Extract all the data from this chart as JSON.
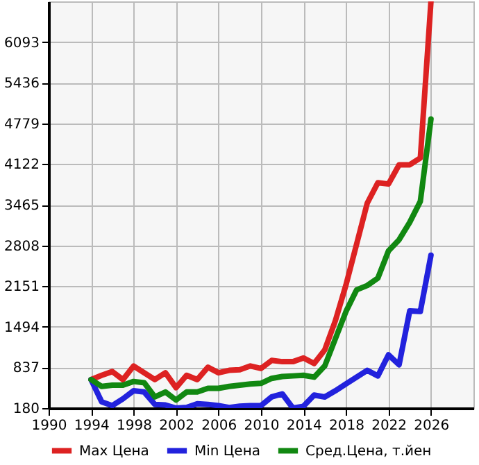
{
  "chart_data": {
    "type": "line",
    "x": [
      1994,
      1995,
      1996,
      1997,
      1998,
      1999,
      2000,
      2001,
      2002,
      2003,
      2004,
      2005,
      2006,
      2007,
      2008,
      2009,
      2010,
      2011,
      2012,
      2013,
      2014,
      2015,
      2016,
      2017,
      2018,
      2019,
      2020,
      2021,
      2022,
      2023,
      2024,
      2025,
      2026
    ],
    "series": [
      {
        "name": "Max Цена",
        "color": "#dd2222",
        "values": [
          640,
          710,
          770,
          640,
          860,
          750,
          640,
          750,
          510,
          710,
          640,
          840,
          750,
          790,
          800,
          860,
          820,
          950,
          930,
          930,
          990,
          900,
          1120,
          1590,
          2170,
          2830,
          3490,
          3820,
          3800,
          4110,
          4110,
          4220,
          6750
        ]
      },
      {
        "name": "Min Цена",
        "color": "#2222dd",
        "values": [
          640,
          280,
          220,
          330,
          460,
          440,
          240,
          230,
          180,
          190,
          250,
          240,
          220,
          190,
          210,
          220,
          220,
          360,
          410,
          180,
          210,
          390,
          360,
          460,
          570,
          680,
          790,
          700,
          1040,
          880,
          1750,
          1740,
          2650
        ]
      },
      {
        "name": "Сред.Цена, т.йен",
        "color": "#118811",
        "values": [
          640,
          530,
          550,
          550,
          610,
          590,
          360,
          440,
          310,
          440,
          440,
          500,
          500,
          530,
          550,
          570,
          580,
          660,
          690,
          700,
          710,
          680,
          860,
          1300,
          1740,
          2090,
          2160,
          2280,
          2720,
          2900,
          3180,
          3520,
          4850
        ]
      }
    ],
    "xlim": [
      1990,
      2030
    ],
    "xticks": [
      1990,
      1994,
      1998,
      2002,
      2006,
      2010,
      2014,
      2018,
      2022,
      2026
    ],
    "ylim": [
      180,
      6750
    ],
    "yticks": [
      180,
      837,
      1494,
      2151,
      2808,
      3465,
      4122,
      4779,
      5436,
      6093
    ],
    "grid": true,
    "legend": "bottom",
    "marker": "none",
    "line_style": "solid"
  }
}
